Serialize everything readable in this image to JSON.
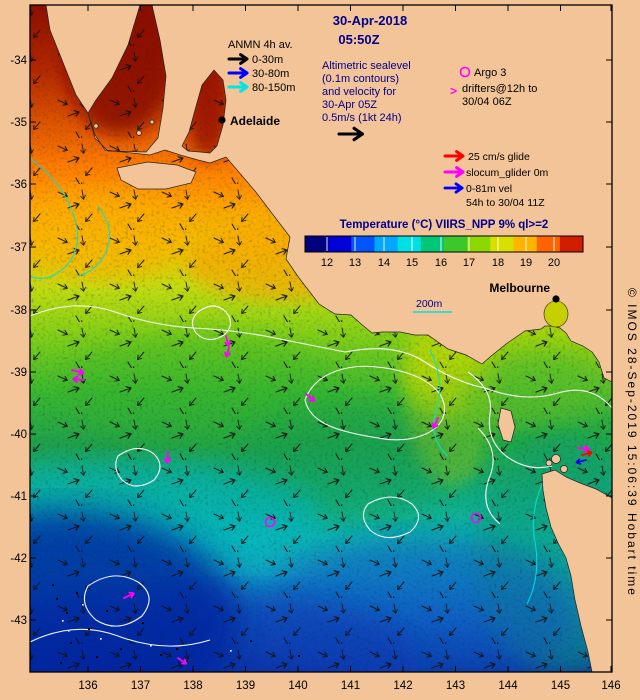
{
  "title": {
    "date": "30-Apr-2018",
    "time": "05:50Z"
  },
  "anmn_legend": {
    "title": "ANMN 4h av.",
    "items": [
      {
        "label": "0-30m",
        "color": "#000000"
      },
      {
        "label": "30-80m",
        "color": "#0000FF"
      },
      {
        "label": "80-150m",
        "color": "#00E5E5"
      }
    ]
  },
  "altimetric_note": {
    "line1": "Altimetric sealevel",
    "line2": "(0.1m contours)",
    "line3": "and velocity for",
    "line4": "30-Apr 05Z",
    "line5": "0.5m/s (1kt 24h)"
  },
  "argo_legend": {
    "argo_label": "Argo 3",
    "drifters_line1": "drifters@12h to",
    "drifters_line2": "30/04 06Z"
  },
  "glider_legend": {
    "line1": "25 cm/s glide",
    "line2": "slocum_glider 0m",
    "line3": "0-81m vel",
    "line4": "54h to 30/04 11Z"
  },
  "colorbar": {
    "title": "Temperature (°C) VIIRS_NPP 9% ql>=2",
    "ticks": [
      "12",
      "13",
      "14",
      "15",
      "16",
      "17",
      "18",
      "19",
      "20"
    ],
    "colors": [
      "#00007F",
      "#0000D8",
      "#0055FF",
      "#00A8FF",
      "#00E0E0",
      "#00C878",
      "#3CC828",
      "#8CD800",
      "#D8E000",
      "#FFB400",
      "#FF6400",
      "#D21E00"
    ]
  },
  "depth_contour_legend": {
    "label": "200m"
  },
  "cities": {
    "adelaide": "Adelaide",
    "melbourne": "Melbourne"
  },
  "axes": {
    "lat_ticks": [
      "-34",
      "-35",
      "-36",
      "-37",
      "-38",
      "-39",
      "-40",
      "-41",
      "-42",
      "-43"
    ],
    "lon_ticks": [
      "136",
      "137",
      "138",
      "139",
      "140",
      "141",
      "142",
      "143",
      "144",
      "145",
      "146"
    ]
  },
  "copyright": "© IMOS 28-Sep-2019 15:06:39 Hobart time",
  "colors": {
    "land": "#F2C498",
    "navy_text": "#00008B",
    "magenta": "#FF00FF",
    "cyan_contour": "#00E0E0",
    "white_contour": "#FFFFFF"
  }
}
